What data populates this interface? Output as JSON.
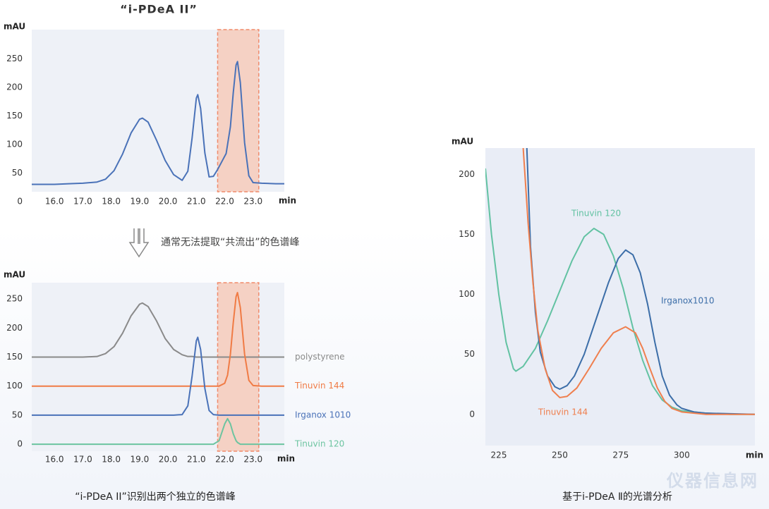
{
  "chart_data": [
    {
      "type": "line",
      "title": "“i-PDeA II”",
      "y_label": "mAU",
      "x_label": "min",
      "caption": "通常无法提取“共流出”的色谱峰",
      "x": [
        15.2,
        16,
        16.5,
        17,
        17.5,
        17.8,
        18.1,
        18.4,
        18.7,
        19.0,
        19.1,
        19.3,
        19.6,
        19.9,
        20.2,
        20.5,
        20.7,
        20.85,
        21.0,
        21.05,
        21.15,
        21.3,
        21.45,
        21.6,
        21.75,
        21.9,
        22.05,
        22.2,
        22.3,
        22.4,
        22.45,
        22.55,
        22.7,
        22.85,
        23.0,
        23.3,
        23.8,
        24.1
      ],
      "values": [
        30,
        30,
        31,
        32,
        34,
        39,
        54,
        83,
        120,
        144,
        146,
        139,
        107,
        72,
        47,
        37,
        53,
        111,
        181,
        187,
        163,
        85,
        43,
        44,
        56,
        70,
        84,
        131,
        190,
        239,
        245,
        208,
        103,
        45,
        33,
        32,
        31,
        31
      ],
      "color": "#4a72b8",
      "highlight": [
        21.75,
        23.2
      ],
      "xlim": [
        15.2,
        24.1
      ],
      "ylim": [
        17,
        301
      ],
      "xticks": [
        {
          "value": 16,
          "label": "16.0"
        },
        {
          "value": 17,
          "label": "17.0"
        },
        {
          "value": 18,
          "label": "18.0"
        },
        {
          "value": 19,
          "label": "19.0"
        },
        {
          "value": 20,
          "label": "20.0"
        },
        {
          "value": 21,
          "label": "21.0"
        },
        {
          "value": 22,
          "label": "22.0"
        },
        {
          "value": 23,
          "label": "23.0"
        }
      ],
      "yticks": [
        0,
        50,
        100,
        150,
        200,
        250
      ]
    },
    {
      "type": "line",
      "y_label": "mAU",
      "x_label": "min",
      "caption": "“i-PDeA II”识别出两个独立的色谱峰",
      "x": [
        15.2,
        16,
        17,
        17.5,
        17.8,
        18.1,
        18.4,
        18.7,
        19.0,
        19.1,
        19.3,
        19.6,
        19.9,
        20.2,
        20.5,
        20.7,
        20.85,
        21.0,
        21.05,
        21.15,
        21.3,
        21.45,
        21.6,
        21.8,
        22.0,
        22.1,
        22.2,
        22.3,
        22.4,
        22.45,
        22.55,
        22.7,
        22.85,
        23.0,
        23.3,
        24.1
      ],
      "series": [
        {
          "name": "polystyrene",
          "color": "#8a8a8a",
          "values": [
            150,
            150,
            150,
            151,
            156,
            168,
            191,
            221,
            241,
            243,
            237,
            212,
            182,
            163,
            154,
            151,
            151,
            150,
            150,
            150,
            150,
            150,
            150,
            150,
            150,
            150,
            150,
            150,
            150,
            150,
            150,
            150,
            150,
            150,
            150,
            150
          ]
        },
        {
          "name": "Tinuvin 144",
          "color": "#f07b45",
          "values": [
            100,
            100,
            100,
            100,
            100,
            100,
            100,
            100,
            100,
            100,
            100,
            100,
            100,
            100,
            100,
            100,
            100,
            100,
            100,
            100,
            100,
            100,
            100,
            100,
            105,
            119,
            155,
            209,
            254,
            261,
            235,
            155,
            110,
            101,
            100,
            100
          ]
        },
        {
          "name": "Irganox 1010",
          "color": "#4a72b8",
          "values": [
            50,
            50,
            50,
            50,
            50,
            50,
            50,
            50,
            50,
            50,
            50,
            50,
            50,
            50,
            51,
            66,
            117,
            178,
            184,
            163,
            96,
            58,
            51,
            50,
            50,
            50,
            50,
            50,
            50,
            50,
            50,
            50,
            50,
            50,
            50,
            50
          ]
        },
        {
          "name": "Tinuvin 120",
          "color": "#6cc4a0",
          "values": [
            0,
            0,
            0,
            0,
            0,
            0,
            0,
            0,
            0,
            0,
            0,
            0,
            0,
            0,
            0,
            0,
            0,
            0,
            0,
            0,
            0,
            0,
            0,
            6,
            35,
            44,
            35,
            18,
            6,
            3,
            0,
            0,
            0,
            0,
            0,
            0
          ]
        }
      ],
      "highlight": [
        21.75,
        23.2
      ],
      "xlim": [
        15.2,
        24.1
      ],
      "ylim": [
        -12,
        278
      ],
      "xticks": [
        {
          "value": 16,
          "label": "16.0"
        },
        {
          "value": 17,
          "label": "17.0"
        },
        {
          "value": 18,
          "label": "18.0"
        },
        {
          "value": 19,
          "label": "19.0"
        },
        {
          "value": 20,
          "label": "20.0"
        },
        {
          "value": 21,
          "label": "21.0"
        },
        {
          "value": 22,
          "label": "22.0"
        },
        {
          "value": 23,
          "label": "23.0"
        }
      ],
      "yticks": [
        0,
        50,
        100,
        150,
        200,
        250
      ]
    },
    {
      "type": "line",
      "y_label": "mAU",
      "x_label": "min",
      "caption": "基于i-PDeA Ⅱ的光谱分析",
      "series": [
        {
          "name": "Tinuvin 120",
          "color": "#62c2a2",
          "x": [
            219.5,
            222,
            225,
            228,
            231,
            232,
            235,
            240,
            245,
            250,
            255,
            260,
            264,
            268,
            272,
            276,
            280,
            284,
            288,
            292,
            296,
            300,
            310,
            320,
            330
          ],
          "values": [
            205,
            150,
            100,
            60,
            38,
            36,
            40,
            55,
            78,
            103,
            128,
            148,
            155,
            150,
            132,
            105,
            72,
            45,
            24,
            12,
            6,
            3,
            1,
            0,
            0
          ]
        },
        {
          "name": "Irganox1010",
          "color": "#3c6ea8",
          "x": [
            236.5,
            238,
            240,
            242,
            245,
            248,
            250,
            253,
            256,
            260,
            265,
            270,
            274,
            277,
            280,
            283,
            286,
            289,
            292,
            295,
            298,
            300,
            305,
            310,
            330
          ],
          "values": [
            222,
            140,
            85,
            52,
            32,
            23,
            21,
            24,
            32,
            50,
            80,
            110,
            130,
            137,
            133,
            118,
            92,
            60,
            32,
            16,
            8,
            5,
            2,
            1,
            0
          ]
        },
        {
          "name": "Tinuvin 144",
          "color": "#ef7f4e",
          "x": [
            235,
            237,
            239,
            241,
            244,
            247,
            250,
            253,
            257,
            262,
            267,
            272,
            277,
            281,
            284,
            287,
            290,
            293,
            296,
            300,
            310,
            330
          ],
          "values": [
            222,
            160,
            110,
            70,
            38,
            20,
            14,
            15,
            22,
            38,
            55,
            68,
            73,
            68,
            55,
            38,
            22,
            11,
            5,
            2,
            0,
            0
          ]
        }
      ],
      "xlim": [
        219.5,
        330
      ],
      "ylim": [
        -26,
        222
      ],
      "xticks": [
        225,
        250,
        275,
        300
      ],
      "yticks": [
        0,
        50,
        100,
        150,
        200
      ]
    }
  ],
  "watermark": "仪器信息网"
}
